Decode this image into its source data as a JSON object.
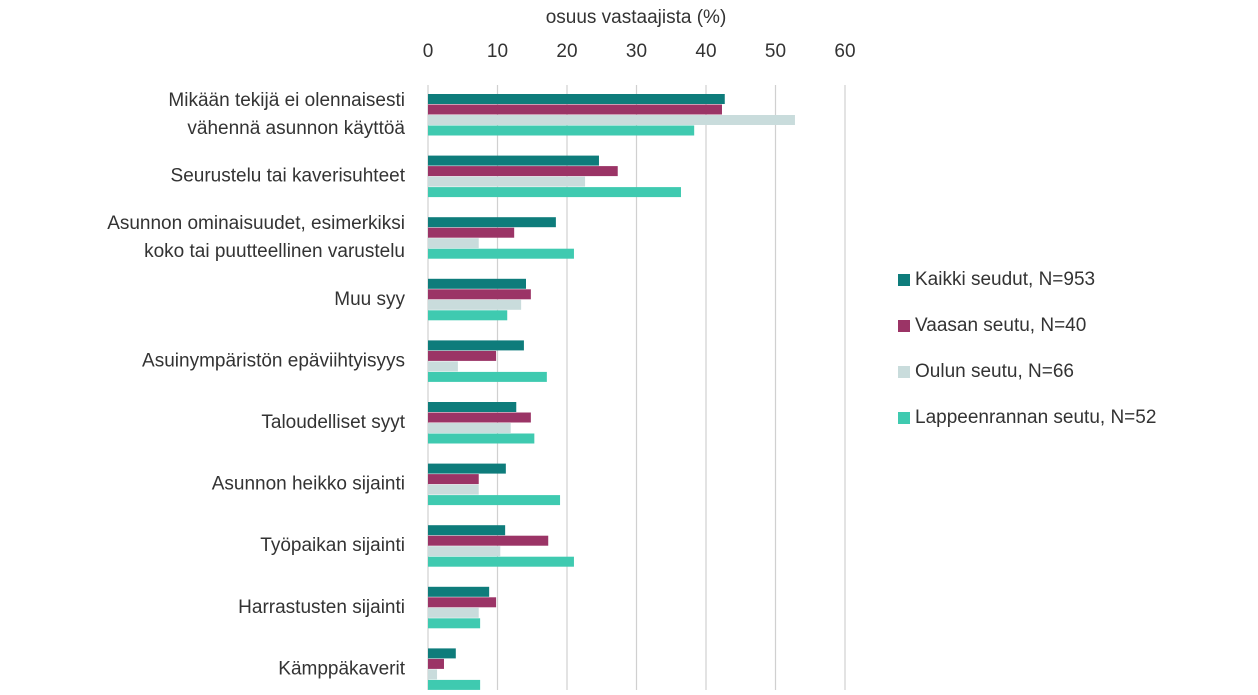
{
  "chart_data": {
    "type": "hbar",
    "xlabel": "osuus vastaajista (%)",
    "categories": [
      [
        "Mikään tekijä ei olennaisesti",
        "vähennä asunnon käyttöä"
      ],
      [
        "Seurustelu tai kaverisuhteet"
      ],
      [
        "Asunnon ominaisuudet, esimerkiksi",
        "koko tai puutteellinen varustelu"
      ],
      [
        "Muu syy"
      ],
      [
        "Asuinympäristön epäviihtyisyys"
      ],
      [
        "Taloudelliset syyt"
      ],
      [
        "Asunnon heikko sijainti"
      ],
      [
        "Työpaikan sijainti"
      ],
      [
        "Harrastusten sijainti"
      ],
      [
        "Kämppäkaverit"
      ]
    ],
    "series": [
      {
        "name": "Kaikki seudut, N=953",
        "color": "#0e7c7b",
        "values": [
          42.7,
          24.6,
          18.4,
          14.1,
          13.8,
          12.7,
          11.2,
          11.1,
          8.8,
          4.0
        ]
      },
      {
        "name": "Vaasan seutu, N=40",
        "color": "#9b3466",
        "values": [
          42.3,
          27.3,
          12.4,
          14.8,
          9.8,
          14.8,
          7.3,
          17.3,
          9.8,
          2.3
        ]
      },
      {
        "name": "Oulun seutu, N=66",
        "color": "#c9dcdc",
        "values": [
          52.8,
          22.6,
          7.3,
          13.4,
          4.3,
          11.9,
          7.3,
          10.4,
          7.3,
          1.3
        ]
      },
      {
        "name": "Lappeenrannan seutu, N=52",
        "color": "#3fcab0",
        "values": [
          38.3,
          36.4,
          21.0,
          11.4,
          17.1,
          15.3,
          19.0,
          21.0,
          7.5,
          7.5
        ]
      }
    ],
    "xlim": [
      0,
      60
    ],
    "xticks": [
      0,
      10,
      20,
      30,
      40,
      50,
      60
    ],
    "grid": true,
    "legend": "right"
  }
}
